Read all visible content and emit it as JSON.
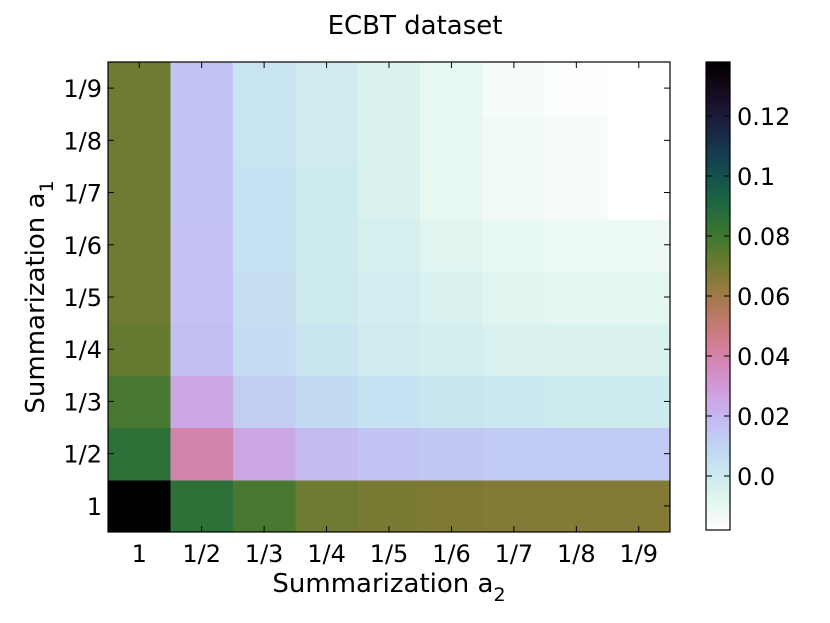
{
  "chart_data": {
    "type": "heatmap",
    "title": "ECBT dataset",
    "xlabel": "Summarization a",
    "xlabel_sub": "2",
    "ylabel": "Summarization a",
    "ylabel_sub": "1",
    "x_categories": [
      "1",
      "1/2",
      "1/3",
      "1/4",
      "1/5",
      "1/6",
      "1/7",
      "1/8",
      "1/9"
    ],
    "y_categories": [
      "1",
      "1/2",
      "1/3",
      "1/4",
      "1/5",
      "1/6",
      "1/7",
      "1/8",
      "1/9"
    ],
    "values": [
      [
        0.138,
        0.085,
        0.078,
        0.07,
        0.068,
        0.067,
        0.066,
        0.066,
        0.066
      ],
      [
        0.085,
        0.04,
        0.025,
        0.018,
        0.015,
        0.014,
        0.013,
        0.013,
        0.013
      ],
      [
        0.078,
        0.025,
        0.012,
        0.007,
        0.004,
        0.002,
        0.001,
        0.0,
        0.0
      ],
      [
        0.072,
        0.017,
        0.006,
        0.002,
        -0.001,
        -0.003,
        -0.005,
        -0.006,
        -0.006
      ],
      [
        0.07,
        0.016,
        0.005,
        0.0,
        -0.002,
        -0.005,
        -0.008,
        -0.009,
        -0.009
      ],
      [
        0.07,
        0.016,
        0.004,
        0.0,
        -0.004,
        -0.008,
        -0.01,
        -0.012,
        -0.012
      ],
      [
        0.07,
        0.015,
        0.004,
        0.0,
        -0.005,
        -0.01,
        -0.013,
        -0.015,
        -0.018
      ],
      [
        0.07,
        0.015,
        0.003,
        -0.001,
        -0.006,
        -0.01,
        -0.013,
        -0.015,
        -0.018
      ],
      [
        0.07,
        0.015,
        0.003,
        -0.001,
        -0.006,
        -0.01,
        -0.015,
        -0.017,
        -0.018
      ]
    ],
    "colormap": "cubehelix_r",
    "colorbar": {
      "min": -0.018,
      "max": 0.138,
      "ticks": [
        0.0,
        0.02,
        0.04,
        0.06,
        0.08,
        0.1,
        0.12
      ],
      "tick_labels": [
        "0.0",
        "0.02",
        "0.04",
        "0.06",
        "0.08",
        "0.1",
        "0.12"
      ]
    },
    "grid": false
  }
}
